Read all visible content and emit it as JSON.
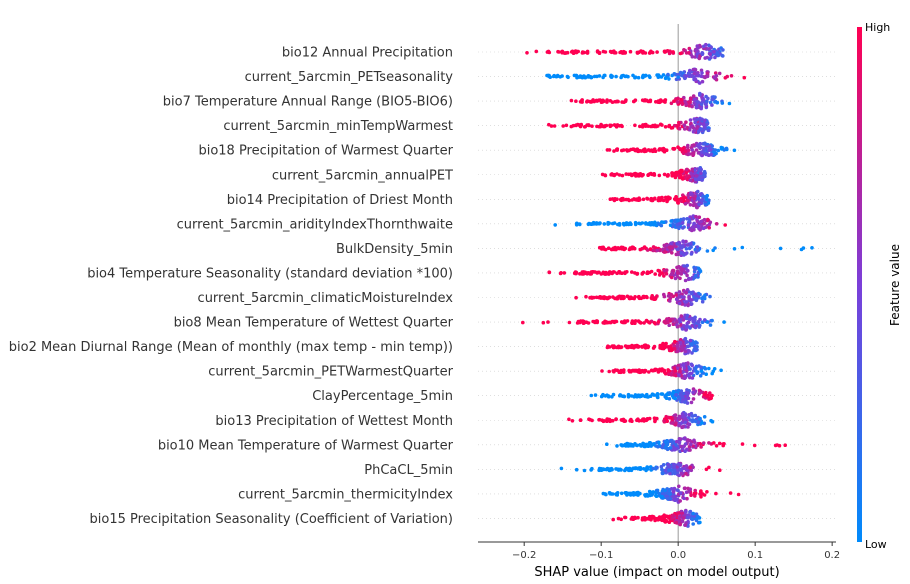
{
  "chart_data": {
    "type": "scatter",
    "subtype": "shap_beeswarm",
    "xlabel": "SHAP value (impact on model output)",
    "xlim": [
      -0.26,
      0.205
    ],
    "xticks": [
      "−0.2",
      "−0.1",
      "0.0",
      "0.1",
      "0.2"
    ],
    "xtick_values": [
      -0.2,
      -0.1,
      0.0,
      0.1,
      0.2
    ],
    "colorbar": {
      "title": "Feature value",
      "high_label": "High",
      "low_label": "Low",
      "high_color": "#ff0052",
      "mid_color": "#7b3fd9",
      "low_color": "#008bfb"
    },
    "grid": false,
    "features": [
      {
        "name": "bio12 Annual Precipitation",
        "min": -0.21,
        "max": 0.065,
        "dense_left": -0.155,
        "core_center": 0.035,
        "high_side": "negative"
      },
      {
        "name": "current_5arcmin_PETseasonality",
        "min": -0.18,
        "max": 0.09,
        "dense_left": -0.17,
        "core_center": 0.025,
        "high_side": "positive"
      },
      {
        "name": "bio7 Temperature Annual Range (BIO5-BIO6)",
        "min": -0.155,
        "max": 0.068,
        "dense_left": -0.14,
        "core_center": 0.03,
        "high_side": "negative"
      },
      {
        "name": "current_5arcmin_minTempWarmest",
        "min": -0.17,
        "max": 0.04,
        "dense_left": -0.14,
        "core_center": 0.028,
        "high_side": "negative"
      },
      {
        "name": "bio18 Precipitation of Warmest Quarter",
        "min": -0.095,
        "max": 0.1,
        "dense_left": -0.08,
        "core_center": 0.03,
        "high_side": "negative"
      },
      {
        "name": "current_5arcmin_annualPET",
        "min": -0.1,
        "max": 0.035,
        "dense_left": -0.09,
        "core_center": 0.025,
        "high_side": "negative"
      },
      {
        "name": "bio14 Precipitation of Driest Month",
        "min": -0.095,
        "max": 0.04,
        "dense_left": -0.09,
        "core_center": 0.025,
        "high_side": "negative"
      },
      {
        "name": "current_5arcmin_aridityIndexThornthwaite",
        "min": -0.195,
        "max": 0.075,
        "dense_left": -0.14,
        "core_center": 0.02,
        "high_side": "positive"
      },
      {
        "name": "BulkDensity_5min",
        "min": -0.115,
        "max": 0.18,
        "dense_left": -0.1,
        "core_center": 0.005,
        "high_side": "negative"
      },
      {
        "name": "bio4 Temperature Seasonality (standard deviation *100)",
        "min": -0.19,
        "max": 0.03,
        "dense_left": -0.135,
        "core_center": 0.01,
        "high_side": "negative"
      },
      {
        "name": "current_5arcmin_climaticMoistureIndex",
        "min": -0.21,
        "max": 0.043,
        "dense_left": -0.12,
        "core_center": 0.012,
        "high_side": "negative"
      },
      {
        "name": "bio8 Mean Temperature of Wettest Quarter",
        "min": -0.235,
        "max": 0.068,
        "dense_left": -0.13,
        "core_center": 0.012,
        "high_side": "negative"
      },
      {
        "name": "bio2 Mean Diurnal Range (Mean of monthly (max temp - min temp))",
        "min": -0.095,
        "max": 0.025,
        "dense_left": -0.09,
        "core_center": 0.01,
        "high_side": "negative"
      },
      {
        "name": "current_5arcmin_PETWarmestQuarter",
        "min": -0.1,
        "max": 0.06,
        "dense_left": -0.085,
        "core_center": 0.012,
        "high_side": "negative"
      },
      {
        "name": "ClayPercentage_5min",
        "min": -0.12,
        "max": 0.045,
        "dense_left": -0.11,
        "core_center": 0.015,
        "high_side": "positive"
      },
      {
        "name": "bio13 Precipitation of Wettest Month",
        "min": -0.145,
        "max": 0.045,
        "dense_left": -0.1,
        "core_center": 0.01,
        "high_side": "negative"
      },
      {
        "name": "bio10 Mean Temperature of Warmest Quarter",
        "min": -0.105,
        "max": 0.142,
        "dense_left": -0.08,
        "core_center": 0.005,
        "high_side": "positive"
      },
      {
        "name": "PhCaCL_5min",
        "min": -0.155,
        "max": 0.065,
        "dense_left": -0.1,
        "core_center": 0.0,
        "high_side": "positive"
      },
      {
        "name": "current_5arcmin_thermicityIndex",
        "min": -0.1,
        "max": 0.08,
        "dense_left": -0.1,
        "core_center": 0.0,
        "high_side": "positive"
      },
      {
        "name": "bio15 Precipitation Seasonality (Coefficient of Variation)",
        "min": -0.088,
        "max": 0.032,
        "dense_left": -0.07,
        "core_center": 0.01,
        "high_side": "negative"
      }
    ]
  }
}
